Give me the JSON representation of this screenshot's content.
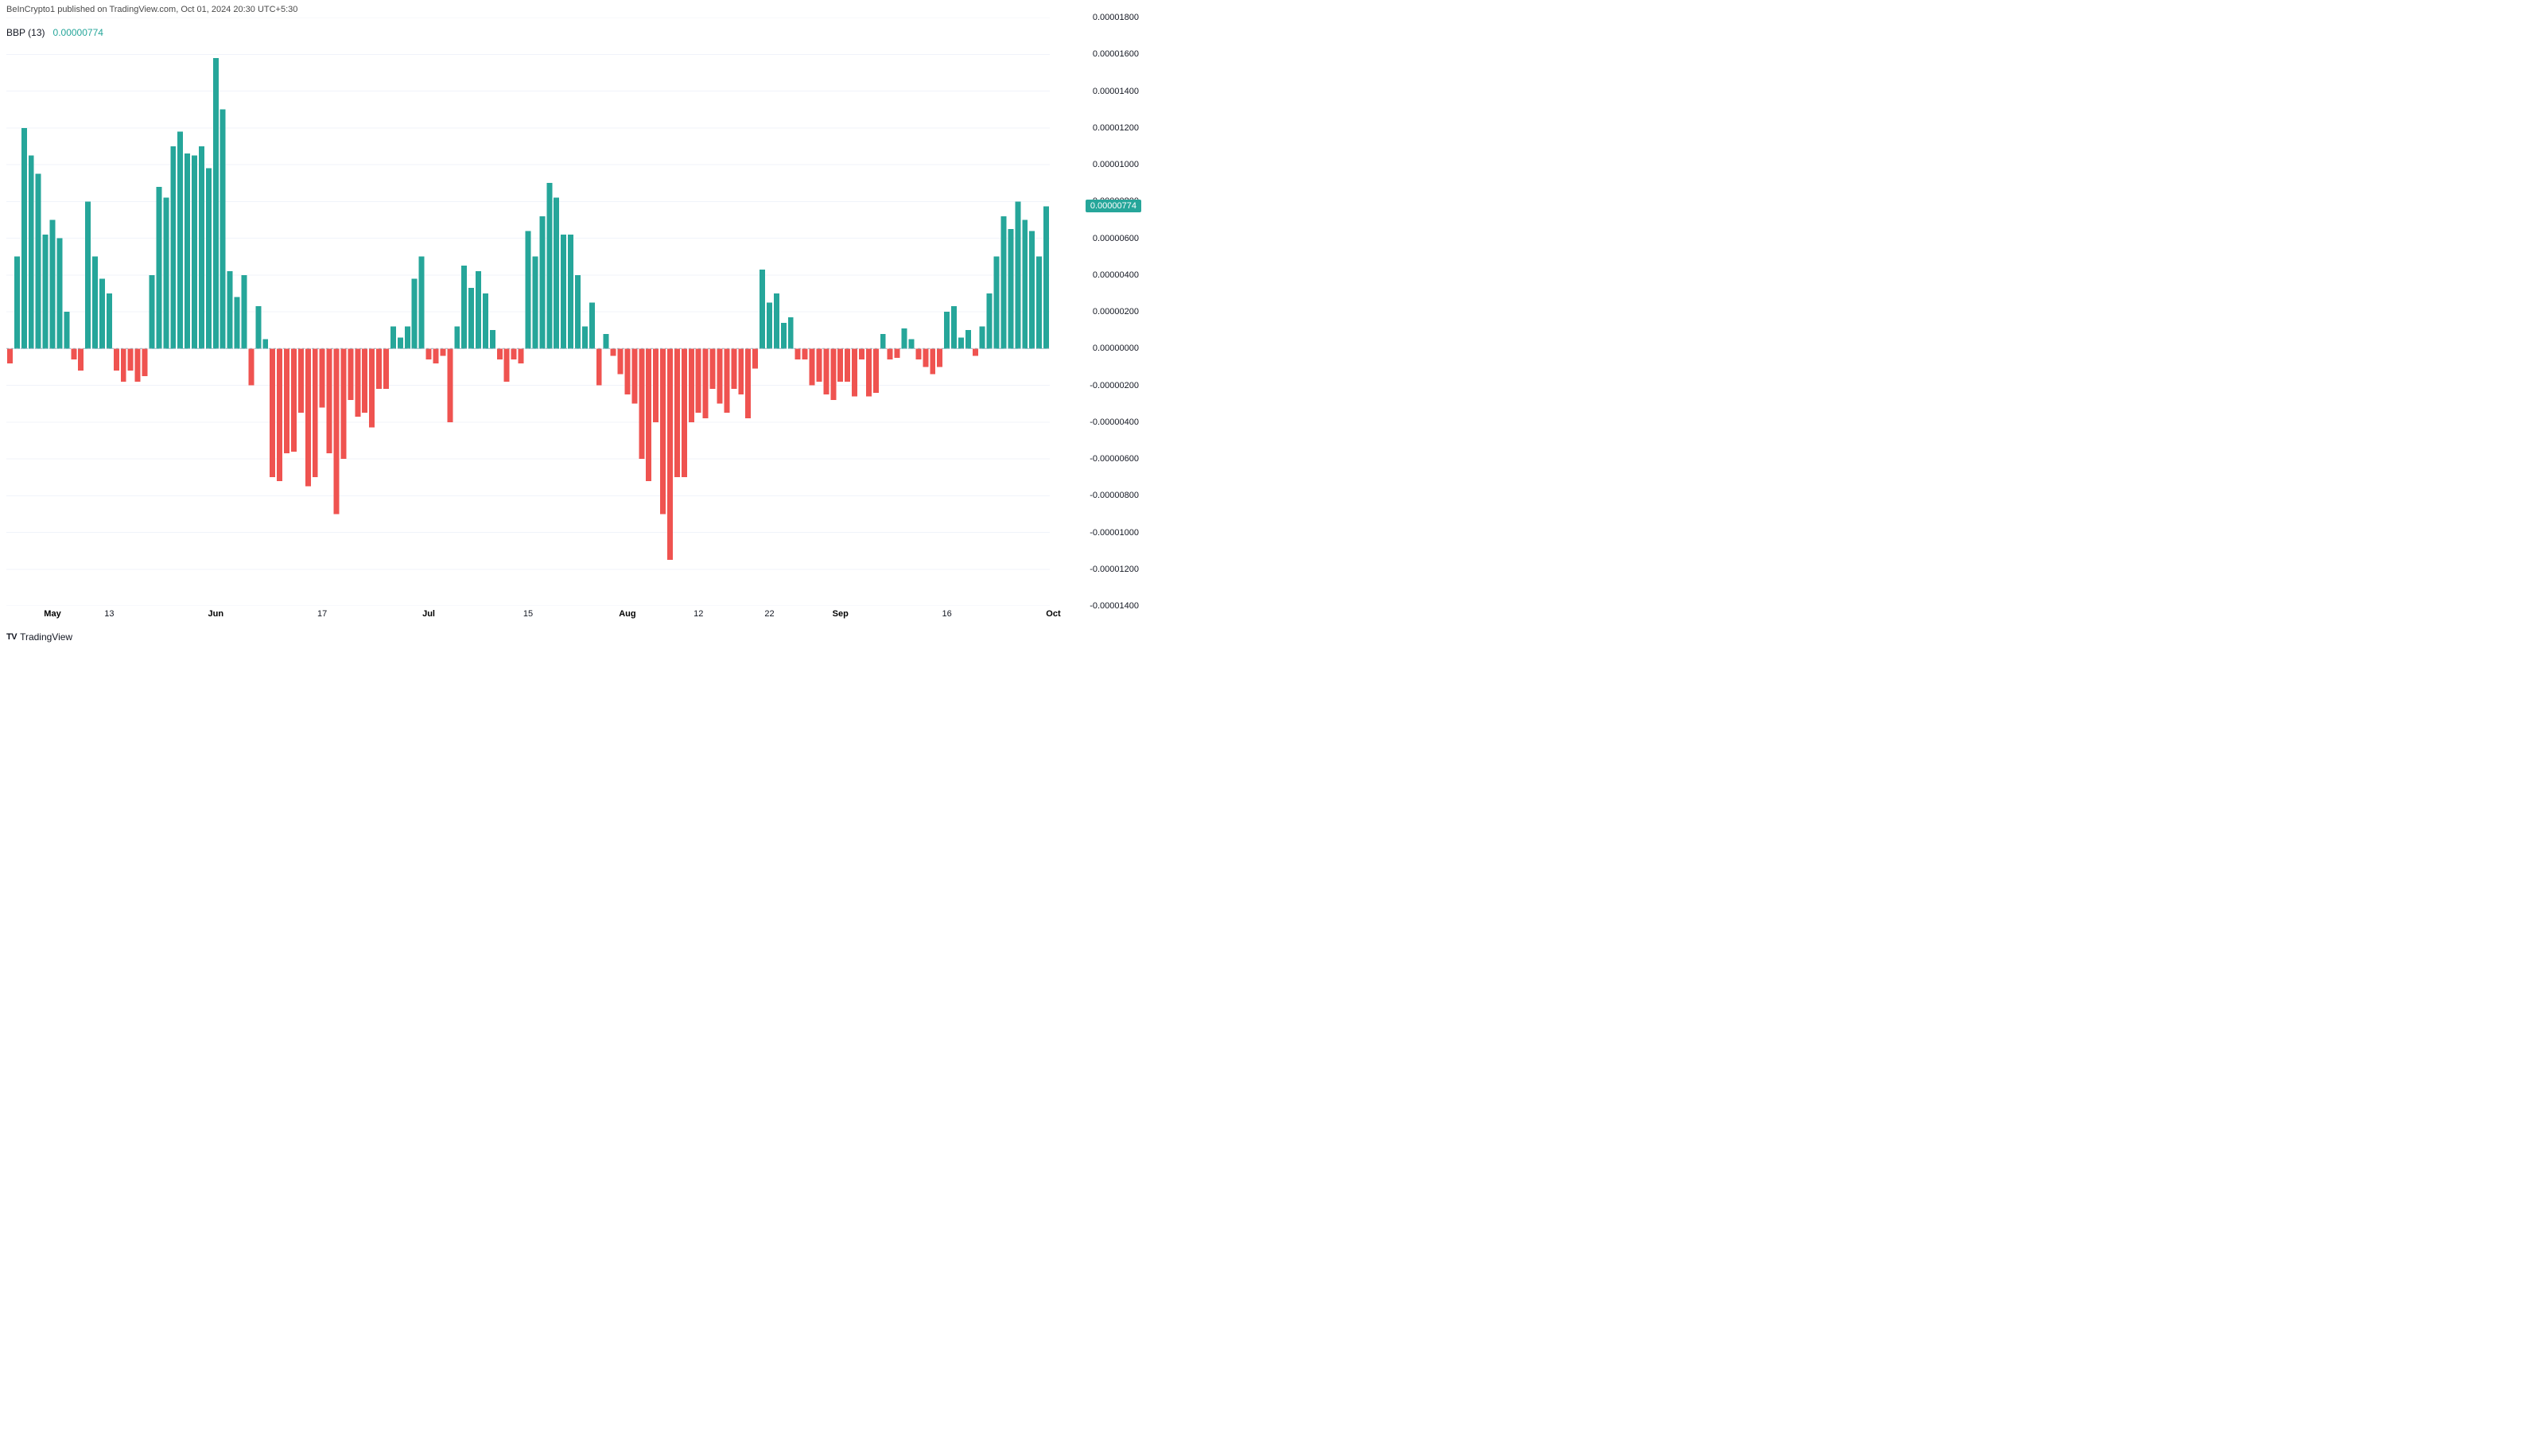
{
  "attribution": "BeInCrypto1 published on TradingView.com, Oct 01, 2024 20:30 UTC+5:30",
  "indicator": {
    "name": "BBP",
    "param": "13",
    "value": "0.00000774",
    "value_color": "#26a69a"
  },
  "footer": {
    "logo_text": "TV",
    "brand": "TradingView"
  },
  "chart": {
    "type": "bar",
    "positive_color": "#26a69a",
    "negative_color": "#ef5350",
    "bar_fill_ratio": 0.78,
    "background_color": "#ffffff",
    "grid_color": "#f0f3fa",
    "zero_line_color": "#9db2bd",
    "axis_text_color": "#131722",
    "y_axis": {
      "min": -1.4e-05,
      "max": 1.8e-05,
      "tick_step": 2e-06,
      "ticks": [
        "0.00001800",
        "0.00001600",
        "0.00001400",
        "0.00001200",
        "0.00001000",
        "0.00000800",
        "0.00000600",
        "0.00000400",
        "0.00000200",
        "0.00000000",
        "-0.00000200",
        "-0.00000400",
        "-0.00000600",
        "-0.00000800",
        "-0.00001000",
        "-0.00001200",
        "-0.00001400"
      ],
      "price_label": {
        "text": "0.00000774",
        "value": 7.74e-06,
        "bg_color": "#26a69a"
      }
    },
    "x_axis": {
      "ticks": [
        {
          "pos": 6,
          "label": "May",
          "bold": true
        },
        {
          "pos": 14,
          "label": "13",
          "bold": false
        },
        {
          "pos": 29,
          "label": "Jun",
          "bold": true
        },
        {
          "pos": 44,
          "label": "17",
          "bold": false
        },
        {
          "pos": 59,
          "label": "Jul",
          "bold": true
        },
        {
          "pos": 73,
          "label": "15",
          "bold": false
        },
        {
          "pos": 87,
          "label": "Aug",
          "bold": true
        },
        {
          "pos": 97,
          "label": "12",
          "bold": false
        },
        {
          "pos": 107,
          "label": "22",
          "bold": false
        },
        {
          "pos": 117,
          "label": "Sep",
          "bold": true
        },
        {
          "pos": 132,
          "label": "16",
          "bold": false
        },
        {
          "pos": 147,
          "label": "Oct",
          "bold": true
        }
      ]
    },
    "values": [
      -8e-07,
      5e-06,
      1.2e-05,
      1.05e-05,
      9.5e-06,
      6.2e-06,
      7e-06,
      6e-06,
      2e-06,
      -6e-07,
      -1.2e-06,
      8e-06,
      5e-06,
      3.8e-06,
      3e-06,
      -1.2e-06,
      -1.8e-06,
      -1.2e-06,
      -1.8e-06,
      -1.5e-06,
      4e-06,
      8.8e-06,
      8.2e-06,
      1.1e-05,
      1.18e-05,
      1.06e-05,
      1.05e-05,
      1.1e-05,
      9.8e-06,
      1.58e-05,
      1.3e-05,
      4.2e-06,
      2.8e-06,
      4e-06,
      -2e-06,
      2.3e-06,
      5e-07,
      -7e-06,
      -7.2e-06,
      -5.7e-06,
      -5.6e-06,
      -3.5e-06,
      -7.5e-06,
      -7e-06,
      -3.2e-06,
      -5.7e-06,
      -9e-06,
      -6e-06,
      -2.8e-06,
      -3.7e-06,
      -3.5e-06,
      -4.3e-06,
      -2.2e-06,
      -2.2e-06,
      1.2e-06,
      6e-07,
      1.2e-06,
      3.8e-06,
      5e-06,
      -6e-07,
      -8e-07,
      -4e-07,
      -4e-06,
      1.2e-06,
      4.5e-06,
      3.3e-06,
      4.2e-06,
      3e-06,
      1e-06,
      -6e-07,
      -1.8e-06,
      -6e-07,
      -8e-07,
      6.4e-06,
      5e-06,
      7.2e-06,
      9e-06,
      8.2e-06,
      6.2e-06,
      6.2e-06,
      4e-06,
      1.2e-06,
      2.5e-06,
      -2e-06,
      8e-07,
      -4e-07,
      -1.4e-06,
      -2.5e-06,
      -3e-06,
      -6e-06,
      -7.2e-06,
      -4e-06,
      -9e-06,
      -1.15e-05,
      -7e-06,
      -7e-06,
      -4e-06,
      -3.5e-06,
      -3.8e-06,
      -2.2e-06,
      -3e-06,
      -3.5e-06,
      -2.2e-06,
      -2.5e-06,
      -3.8e-06,
      -1.1e-06,
      4.3e-06,
      2.5e-06,
      3e-06,
      1.4e-06,
      1.7e-06,
      -6e-07,
      -6e-07,
      -2e-06,
      -1.8e-06,
      -2.5e-06,
      -2.8e-06,
      -1.8e-06,
      -1.8e-06,
      -2.6e-06,
      -6e-07,
      -2.6e-06,
      -2.4e-06,
      8e-07,
      -6e-07,
      -5e-07,
      1.1e-06,
      5e-07,
      -6e-07,
      -1e-06,
      -1.4e-06,
      -1e-06,
      2e-06,
      2.3e-06,
      6e-07,
      1e-06,
      -4e-07,
      1.2e-06,
      3e-06,
      5e-06,
      7.2e-06,
      6.5e-06,
      8e-06,
      7e-06,
      6.4e-06,
      5e-06,
      7.74e-06
    ]
  }
}
